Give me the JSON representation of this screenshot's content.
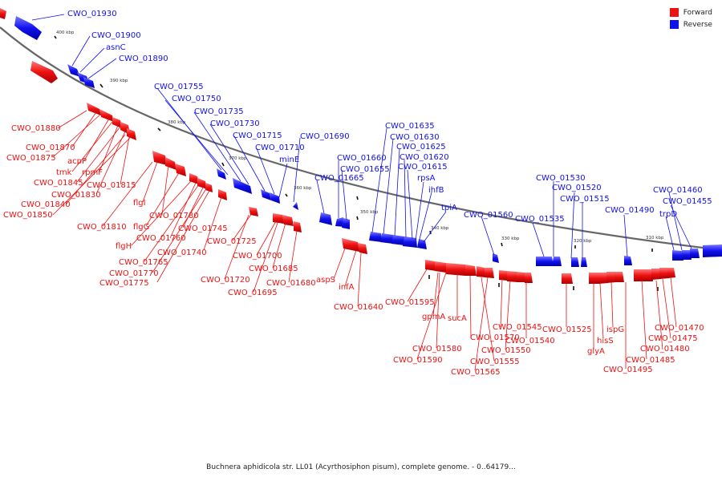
{
  "caption": "Buchnera aphidicola str. LL01 (Acyrthosiphon pisum), complete genome. - 0..64179...",
  "legend": [
    {
      "label": "Forward",
      "color": "#ee1111"
    },
    {
      "label": "Reverse",
      "color": "#1111ee"
    }
  ],
  "colors": {
    "forward": "#ee1111",
    "reverse": "#1111ee",
    "backbone": "#777777"
  },
  "ticks": [
    "400 kbp",
    "390 kbp",
    "380 kbp",
    "370 kbp",
    "360 kbp",
    "350 kbp",
    "340 kbp",
    "330 kbp",
    "320 kbp",
    "310 kbp"
  ],
  "reverse_labels": [
    "CWO_01930",
    "CWO_01900",
    "asnC",
    "CWO_01890",
    "CWO_01755",
    "CWO_01750",
    "CWO_01735",
    "CWO_01730",
    "CWO_01715",
    "CWO_01710",
    "minE",
    "CWO_01690",
    "CWO_01665",
    "CWO_01660",
    "CWO_01655",
    "CWO_01635",
    "CWO_01630",
    "CWO_01625",
    "CWO_01620",
    "CWO_01615",
    "rpsA",
    "ihfB",
    "tpiA",
    "CWO_01560",
    "CWO_01535",
    "CWO_01530",
    "CWO_01520",
    "CWO_01515",
    "CWO_01490",
    "CWO_01460",
    "CWO_01455",
    "trpD"
  ],
  "forward_labels": [
    "CWO_01880",
    "CWO_01870",
    "CWO_01875",
    "acpP",
    "tmk",
    "rpmF",
    "CWO_01845",
    "CWO_01815",
    "CWO_01830",
    "CWO_01840",
    "CWO_01850",
    "flgI",
    "CWO_01780",
    "CWO_01810",
    "flgG",
    "flgH",
    "CWO_01760",
    "CWO_01745",
    "CWO_01740",
    "CWO_01765",
    "CWO_01770",
    "CWO_01775",
    "CWO_01725",
    "CWO_01700",
    "CWO_01720",
    "CWO_01685",
    "CWO_01695",
    "CWO_01680",
    "aspS",
    "infA",
    "CWO_01640",
    "CWO_01595",
    "gpmA",
    "sucA",
    "CWO_01580",
    "CWO_01590",
    "CWO_01570",
    "CWO_01545",
    "CWO_01540",
    "CWO_01550",
    "CWO_01555",
    "CWO_01565",
    "CWO_01525",
    "ispG",
    "hisS",
    "glyA",
    "CWO_01470",
    "CWO_01475",
    "CWO_01480",
    "CWO_01485",
    "CWO_01495"
  ]
}
